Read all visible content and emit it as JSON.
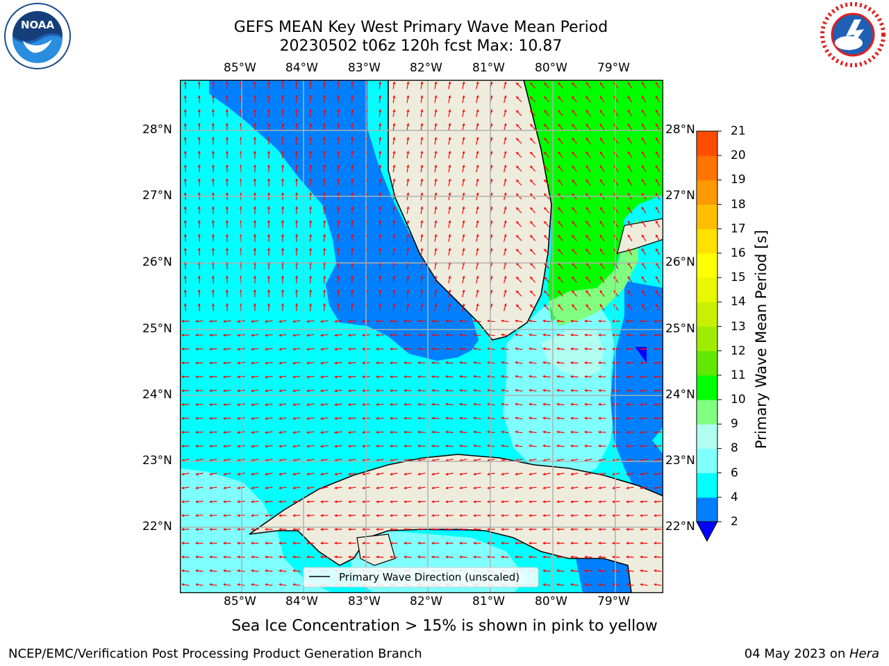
{
  "title": {
    "line1": "GEFS MEAN Key West Primary Wave Mean Period",
    "line2": "20230502 t06z 120h fcst   Max: 10.87"
  },
  "map": {
    "lon_labels": [
      "85°W",
      "84°W",
      "83°W",
      "82°W",
      "81°W",
      "80°W",
      "79°W"
    ],
    "lat_labels": [
      "28°N",
      "27°N",
      "26°N",
      "25°N",
      "24°N",
      "23°N",
      "22°N"
    ],
    "legend_text": "Primary Wave Direction (unscaled)",
    "colors": {
      "land": "#eeecdd",
      "arrow": "#ff0000",
      "grid": "#b0b0b0"
    }
  },
  "colorbar": {
    "label": "Primary Wave Mean Period [s]",
    "ticks": [
      "2",
      "4",
      "6",
      "8",
      "9",
      "10",
      "11",
      "12",
      "13",
      "14",
      "15",
      "16",
      "17",
      "18",
      "19",
      "20",
      "21"
    ],
    "colors": [
      "#0080ff",
      "#00ffff",
      "#80ffff",
      "#b0fff0",
      "#80ff80",
      "#00ff00",
      "#60e800",
      "#a0ec00",
      "#c8f000",
      "#e8f800",
      "#ffff00",
      "#ffe000",
      "#ffbf00",
      "#ff9900",
      "#ff7300",
      "#ff4d00"
    ],
    "under_color": "#0000ff"
  },
  "note": "Sea Ice Concentration > 15% is shown in pink to yellow",
  "footer": {
    "left": "NCEP/EMC/Verification Post Processing Product Generation Branch",
    "date": "04 May 2023 on ",
    "machine": "Hera"
  },
  "logos": {
    "noaa": {
      "text": "NOAA",
      "icon": "noaa-logo-icon"
    },
    "nws": {
      "icon": "national-weather-service-logo-icon"
    }
  }
}
